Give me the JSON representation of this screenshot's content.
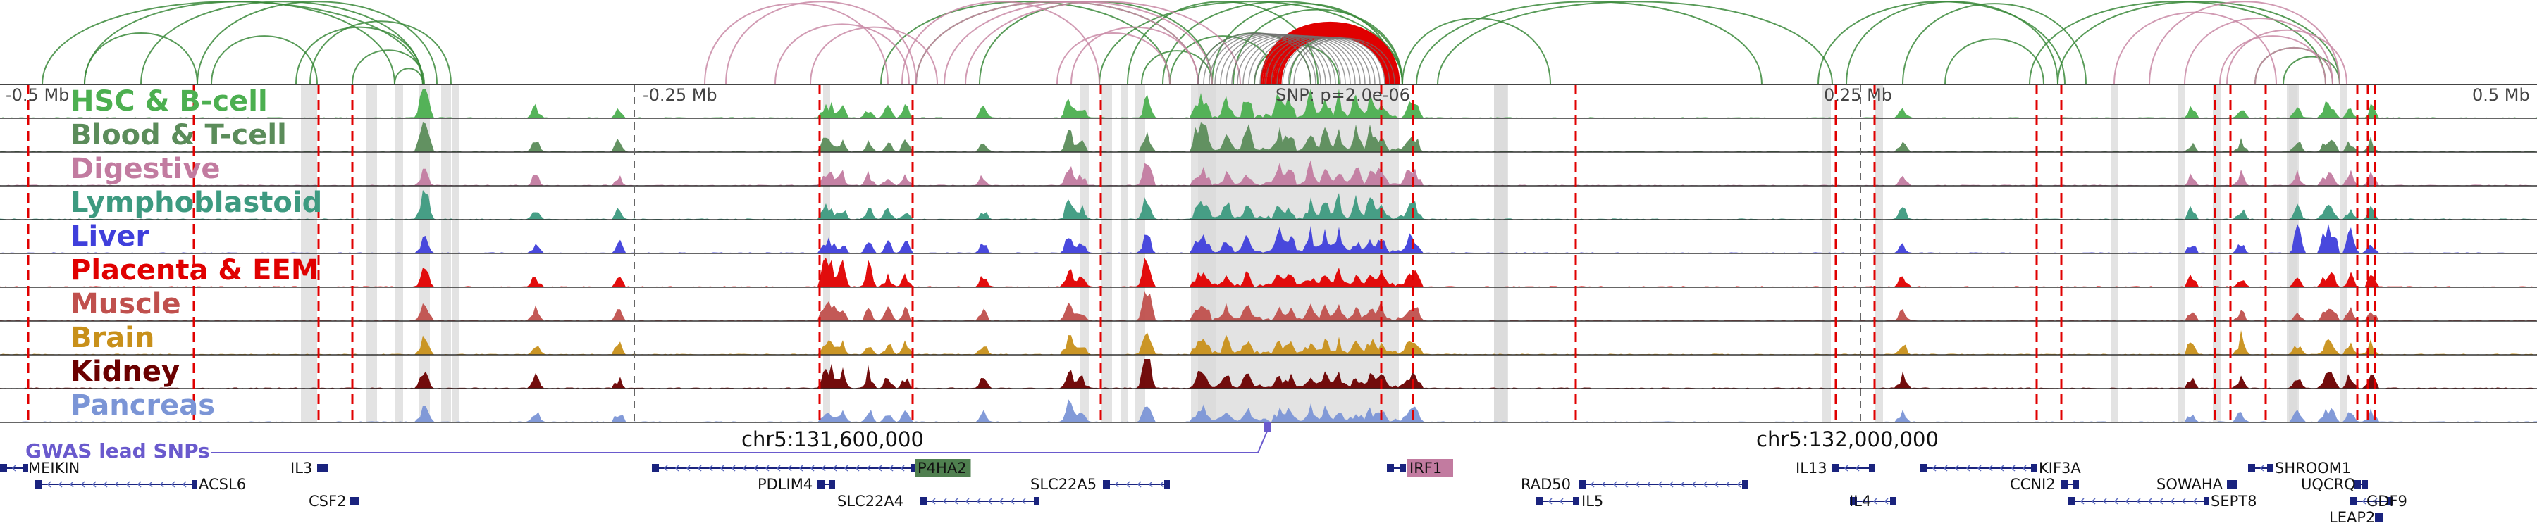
{
  "colors": {
    "link_green": "#3b8a3b",
    "link_pink": "#c98aa6",
    "link_red": "#e00000",
    "highlight_gray": "#d9d9d9",
    "snp_red": "#e00000",
    "gwas_purple": "#6a5acd",
    "gene_navy": "#1a237e",
    "axis": "#444444"
  },
  "ticks": {
    "left_start": "-0.5 Mb",
    "left_mid": "-0.25 Mb",
    "right_mid": "0.25 Mb",
    "right_end": "0.5 Mb",
    "snp": "SNP: p=2.0e-06"
  },
  "tracks": [
    {
      "label": "HSC & B-cell",
      "color": "#4caf50"
    },
    {
      "label": "Blood & T-cell",
      "color": "#5b8c5a"
    },
    {
      "label": "Digestive",
      "color": "#c27ba0"
    },
    {
      "label": "Lymphoblastoid",
      "color": "#3d9a80"
    },
    {
      "label": "Liver",
      "color": "#3f3fdb"
    },
    {
      "label": "Placenta & EEM",
      "color": "#e00000"
    },
    {
      "label": "Muscle",
      "color": "#c0504d"
    },
    {
      "label": "Brain",
      "color": "#c8901a"
    },
    {
      "label": "Kidney",
      "color": "#6b0000"
    },
    {
      "label": "Pancreas",
      "color": "#7b95d6"
    }
  ],
  "gwas": {
    "label": "GWAS lead SNPs"
  },
  "coordinates": {
    "left": "chr5:131,600,000",
    "right": "chr5:132,000,000"
  },
  "genes": [
    {
      "name": "MEIKIN"
    },
    {
      "name": "ACSL6"
    },
    {
      "name": "IL3"
    },
    {
      "name": "CSF2"
    },
    {
      "name": "P4HA2",
      "highlight": "#4f7f4f"
    },
    {
      "name": "PDLIM4"
    },
    {
      "name": "SLC22A4"
    },
    {
      "name": "SLC22A5"
    },
    {
      "name": "IRF1",
      "highlight": "#c27ba0"
    },
    {
      "name": "RAD50"
    },
    {
      "name": "IL5"
    },
    {
      "name": "IL13"
    },
    {
      "name": "IL4"
    },
    {
      "name": "KIF3A"
    },
    {
      "name": "CCNI2"
    },
    {
      "name": "SEPT8"
    },
    {
      "name": "SOWAHA"
    },
    {
      "name": "SHROOM1"
    },
    {
      "name": "UQCRQ"
    },
    {
      "name": "GDF9"
    },
    {
      "name": "LEAP2"
    }
  ]
}
